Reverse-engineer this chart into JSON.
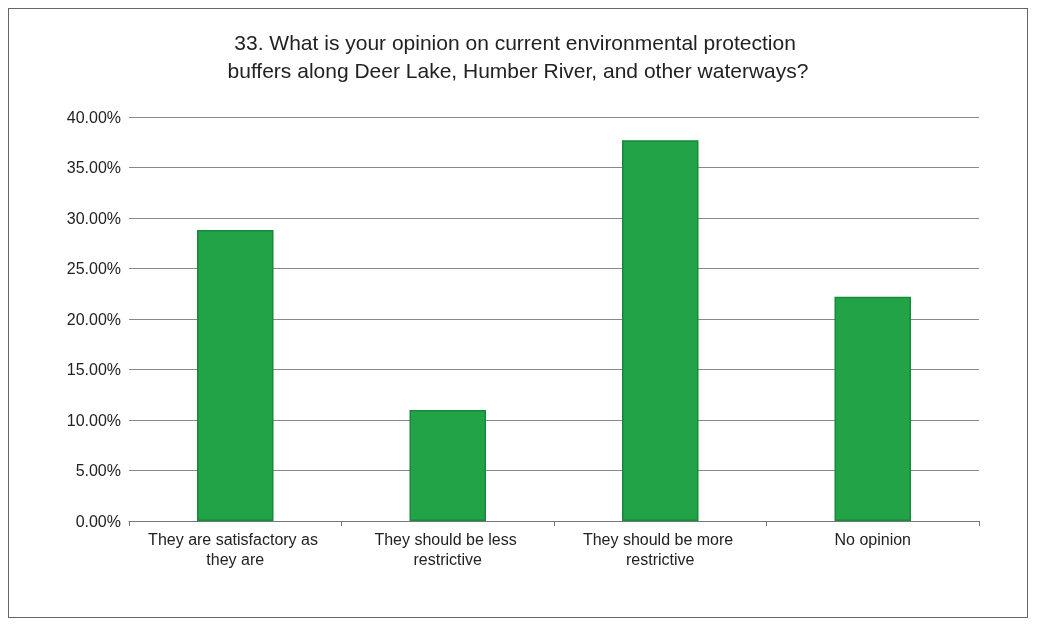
{
  "chart_data": {
    "type": "bar",
    "title": "33. What is your opinion on current environmental protection buffers along Deer Lake, Humber River, and other waterways?",
    "categories": [
      "They are satisfactory as they are",
      "They should be less restrictive",
      "They should be more restrictive",
      "No opinion"
    ],
    "values": [
      28.8,
      11.0,
      37.7,
      22.2
    ],
    "color": "#22a348",
    "ylim": [
      0,
      40
    ],
    "yticks": [
      {
        "value": 0,
        "label": "0.00%"
      },
      {
        "value": 5,
        "label": "5.00%"
      },
      {
        "value": 10,
        "label": "10.00%"
      },
      {
        "value": 15,
        "label": "15.00%"
      },
      {
        "value": 20,
        "label": "20.00%"
      },
      {
        "value": 25,
        "label": "25.00%"
      },
      {
        "value": 30,
        "label": "30.00%"
      },
      {
        "value": 35,
        "label": "35.00%"
      },
      {
        "value": 40,
        "label": "40.00%"
      }
    ],
    "grid": "y"
  }
}
